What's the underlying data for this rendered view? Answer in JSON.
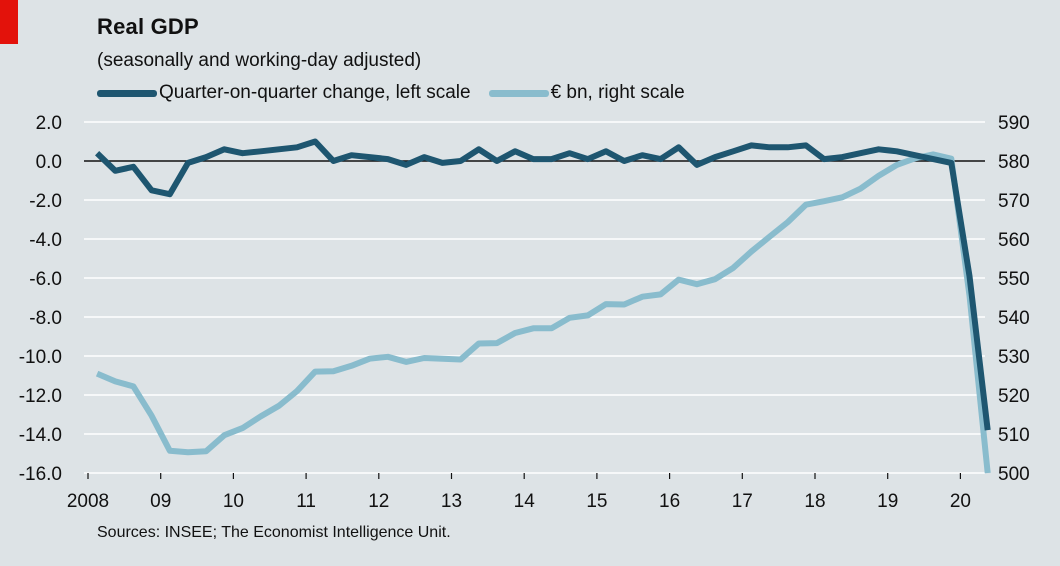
{
  "header": {
    "title": "Real GDP",
    "subtitle": "(seasonally and working-day adjusted)"
  },
  "source": "Sources: INSEE; The Economist Intelligence Unit.",
  "colors": {
    "qoq": "#1e5670",
    "level": "#89bccd",
    "zero_line": "#111111",
    "grid": "#ffffff",
    "accent": "#e3120b"
  },
  "chart_data": {
    "type": "line",
    "x_tick_labels": [
      "2008",
      "09",
      "10",
      "11",
      "12",
      "13",
      "14",
      "15",
      "16",
      "17",
      "18",
      "19",
      "20"
    ],
    "y_left": {
      "range": [
        -16,
        2
      ],
      "ticks": [
        "2.0",
        "0.0",
        "-2.0",
        "-4.0",
        "-6.0",
        "-8.0",
        "-10.0",
        "-12.0",
        "-14.0",
        "-16.0"
      ]
    },
    "y_right": {
      "range": [
        500,
        590
      ],
      "ticks": [
        "590",
        "580",
        "570",
        "560",
        "550",
        "540",
        "530",
        "520",
        "510",
        "500"
      ]
    },
    "grid": true,
    "series": [
      {
        "name": "Quarter-on-quarter change, left scale",
        "axis": "left",
        "start": "2008Q1",
        "values": [
          0.4,
          -0.5,
          -0.3,
          -1.5,
          -1.7,
          -0.1,
          0.2,
          0.6,
          0.4,
          0.5,
          0.6,
          0.7,
          1.0,
          0.0,
          0.3,
          0.2,
          0.1,
          -0.2,
          0.2,
          -0.1,
          0.0,
          0.6,
          0.0,
          0.5,
          0.1,
          0.1,
          0.4,
          0.1,
          0.5,
          0.0,
          0.3,
          0.1,
          0.7,
          -0.2,
          0.2,
          0.5,
          0.8,
          0.7,
          0.7,
          0.8,
          0.1,
          0.2,
          0.4,
          0.6,
          0.5,
          0.3,
          0.1,
          -0.1,
          -5.9,
          -13.8
        ]
      },
      {
        "name": "€ bn, right scale",
        "axis": "right",
        "start": "2008Q1",
        "values": [
          525.5,
          523.5,
          522.2,
          514.7,
          505.7,
          505.3,
          505.6,
          509.7,
          511.5,
          514.5,
          517.2,
          521.0,
          526.0,
          526.1,
          527.5,
          529.3,
          529.8,
          528.5,
          529.5,
          529.3,
          529.1,
          533.2,
          533.3,
          535.9,
          537.1,
          537.1,
          539.8,
          540.4,
          543.3,
          543.2,
          545.2,
          545.8,
          549.6,
          548.4,
          549.7,
          552.6,
          556.8,
          560.6,
          564.3,
          568.8,
          569.7,
          570.7,
          572.9,
          576.2,
          579.0,
          580.7,
          581.7,
          580.6,
          545.5,
          500.0
        ]
      }
    ]
  }
}
